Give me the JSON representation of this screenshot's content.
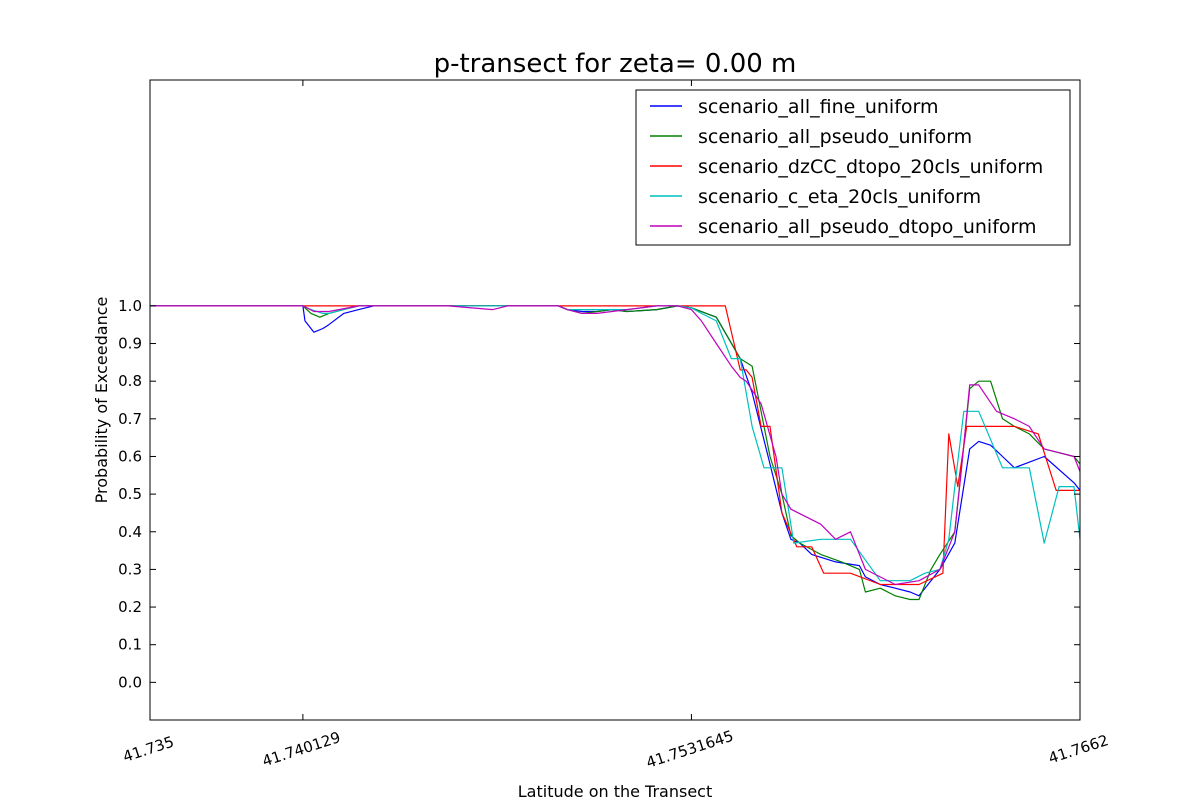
{
  "chart_data": {
    "type": "line",
    "title": "p-transect for zeta= 0.00 m",
    "xlabel": "Latitude on the Transect",
    "ylabel": "Probability of Exceedance",
    "xlim": [
      41.735,
      41.7662
    ],
    "ylim": [
      -0.1,
      1.6
    ],
    "x_ticks": [
      41.735,
      41.740129,
      41.7531645,
      41.7662
    ],
    "x_tick_labels": [
      "41.735",
      "41.740129",
      "41.7531645",
      "41.7662"
    ],
    "y_ticks": [
      0.0,
      0.1,
      0.2,
      0.3,
      0.4,
      0.5,
      0.6,
      0.7,
      0.8,
      0.9,
      1.0
    ],
    "y_tick_labels": [
      "0.0",
      "0.1",
      "0.2",
      "0.3",
      "0.4",
      "0.5",
      "0.6",
      "0.7",
      "0.8",
      "0.9",
      "1.0"
    ],
    "grid": false,
    "legend_position": "top-right",
    "series": [
      {
        "name": "scenario_all_fine_uniform",
        "color": "#0000ff",
        "x": [
          41.735,
          41.740129,
          41.7402,
          41.7405,
          41.7408,
          41.741,
          41.7415,
          41.742,
          41.7425,
          41.743,
          41.745,
          41.7487,
          41.749,
          41.7495,
          41.75,
          41.7505,
          41.751,
          41.752,
          41.7527,
          41.7531645,
          41.754,
          41.7548,
          41.7552,
          41.7558,
          41.7562,
          41.7565,
          41.7568,
          41.7572,
          41.758,
          41.7588,
          41.759,
          41.7595,
          41.76,
          41.7605,
          41.7608,
          41.7612,
          41.7615,
          41.762,
          41.7625,
          41.7628,
          41.7632,
          41.7636,
          41.764,
          41.765,
          41.766,
          41.7662
        ],
        "y": [
          1.0,
          1.0,
          0.96,
          0.93,
          0.94,
          0.95,
          0.98,
          0.99,
          1.0,
          1.0,
          1.0,
          1.0,
          0.99,
          0.985,
          0.985,
          0.99,
          0.985,
          0.99,
          1.0,
          0.995,
          0.97,
          0.86,
          0.77,
          0.58,
          0.45,
          0.38,
          0.37,
          0.34,
          0.32,
          0.31,
          0.28,
          0.26,
          0.25,
          0.24,
          0.23,
          0.27,
          0.3,
          0.37,
          0.62,
          0.64,
          0.63,
          0.6,
          0.57,
          0.6,
          0.53,
          0.51
        ]
      },
      {
        "name": "scenario_all_pseudo_uniform",
        "color": "#008000",
        "x": [
          41.735,
          41.740129,
          41.7404,
          41.7407,
          41.741,
          41.7415,
          41.742,
          41.743,
          41.745,
          41.7487,
          41.749,
          41.7495,
          41.75,
          41.7505,
          41.751,
          41.752,
          41.7527,
          41.7531645,
          41.754,
          41.7548,
          41.7552,
          41.7558,
          41.7562,
          41.7565,
          41.7568,
          41.7575,
          41.7582,
          41.7588,
          41.759,
          41.7595,
          41.76,
          41.7605,
          41.7608,
          41.7612,
          41.7615,
          41.762,
          41.7625,
          41.7628,
          41.7632,
          41.7636,
          41.764,
          41.7645,
          41.765,
          41.766,
          41.7662
        ],
        "y": [
          1.0,
          1.0,
          0.98,
          0.97,
          0.98,
          0.99,
          1.0,
          1.0,
          1.0,
          1.0,
          0.99,
          0.98,
          0.985,
          0.99,
          0.985,
          0.99,
          1.0,
          0.995,
          0.97,
          0.86,
          0.84,
          0.6,
          0.5,
          0.39,
          0.37,
          0.34,
          0.32,
          0.3,
          0.24,
          0.25,
          0.23,
          0.22,
          0.22,
          0.3,
          0.34,
          0.4,
          0.78,
          0.8,
          0.8,
          0.7,
          0.68,
          0.66,
          0.62,
          0.6,
          0.58
        ]
      },
      {
        "name": "scenario_dzCC_dtopo_20cls_uniform",
        "color": "#ff0000",
        "x": [
          41.735,
          41.740129,
          41.7531645,
          41.7543,
          41.7548,
          41.755,
          41.7552,
          41.7555,
          41.7558,
          41.7562,
          41.7567,
          41.7572,
          41.7576,
          41.7585,
          41.7595,
          41.7608,
          41.7616,
          41.7618,
          41.7621,
          41.7624,
          41.7632,
          41.764,
          41.7648,
          41.7654,
          41.766,
          41.7662
        ],
        "y": [
          1.0,
          1.0,
          1.0,
          1.0,
          0.83,
          0.83,
          0.81,
          0.68,
          0.68,
          0.45,
          0.36,
          0.36,
          0.29,
          0.29,
          0.26,
          0.26,
          0.29,
          0.66,
          0.52,
          0.68,
          0.68,
          0.68,
          0.66,
          0.51,
          0.51,
          0.51
        ]
      },
      {
        "name": "scenario_c_eta_20cls_uniform",
        "color": "#00bfbf",
        "x": [
          41.735,
          41.740129,
          41.7404,
          41.7408,
          41.741,
          41.7415,
          41.742,
          41.743,
          41.745,
          41.7487,
          41.749,
          41.7495,
          41.75,
          41.751,
          41.752,
          41.7527,
          41.7531645,
          41.7535,
          41.754,
          41.7545,
          41.7548,
          41.7552,
          41.7556,
          41.7562,
          41.7566,
          41.7575,
          41.7585,
          41.7595,
          41.76,
          41.7605,
          41.761,
          41.7615,
          41.7618,
          41.762,
          41.7623,
          41.7628,
          41.7636,
          41.7645,
          41.765,
          41.7655,
          41.766,
          41.7662
        ],
        "y": [
          1.0,
          1.0,
          0.99,
          0.98,
          0.98,
          0.99,
          1.0,
          1.0,
          1.0,
          1.0,
          0.99,
          0.99,
          0.99,
          0.99,
          1.0,
          1.0,
          0.995,
          0.98,
          0.96,
          0.86,
          0.86,
          0.68,
          0.57,
          0.57,
          0.37,
          0.38,
          0.38,
          0.27,
          0.27,
          0.27,
          0.29,
          0.3,
          0.38,
          0.52,
          0.72,
          0.72,
          0.57,
          0.57,
          0.37,
          0.52,
          0.52,
          0.38
        ]
      },
      {
        "name": "scenario_all_pseudo_dtopo_uniform",
        "color": "#bf00bf",
        "x": [
          41.735,
          41.740129,
          41.7405,
          41.741,
          41.742,
          41.743,
          41.745,
          41.7465,
          41.747,
          41.7487,
          41.749,
          41.7495,
          41.75,
          41.751,
          41.752,
          41.7527,
          41.7531645,
          41.7535,
          41.754,
          41.7545,
          41.7548,
          41.755,
          41.7555,
          41.756,
          41.7562,
          41.7565,
          41.757,
          41.7575,
          41.758,
          41.7585,
          41.759,
          41.76,
          41.7608,
          41.7615,
          41.762,
          41.7622,
          41.7625,
          41.7628,
          41.7634,
          41.764,
          41.7645,
          41.765,
          41.7655,
          41.766,
          41.7662
        ],
        "y": [
          1.0,
          1.0,
          0.985,
          0.985,
          1.0,
          1.0,
          1.0,
          0.99,
          1.0,
          1.0,
          0.99,
          0.98,
          0.98,
          0.99,
          1.0,
          1.0,
          0.99,
          0.96,
          0.9,
          0.84,
          0.81,
          0.8,
          0.74,
          0.6,
          0.5,
          0.46,
          0.44,
          0.42,
          0.38,
          0.4,
          0.3,
          0.26,
          0.27,
          0.3,
          0.4,
          0.55,
          0.79,
          0.79,
          0.72,
          0.7,
          0.68,
          0.62,
          0.61,
          0.6,
          0.56
        ]
      }
    ]
  }
}
